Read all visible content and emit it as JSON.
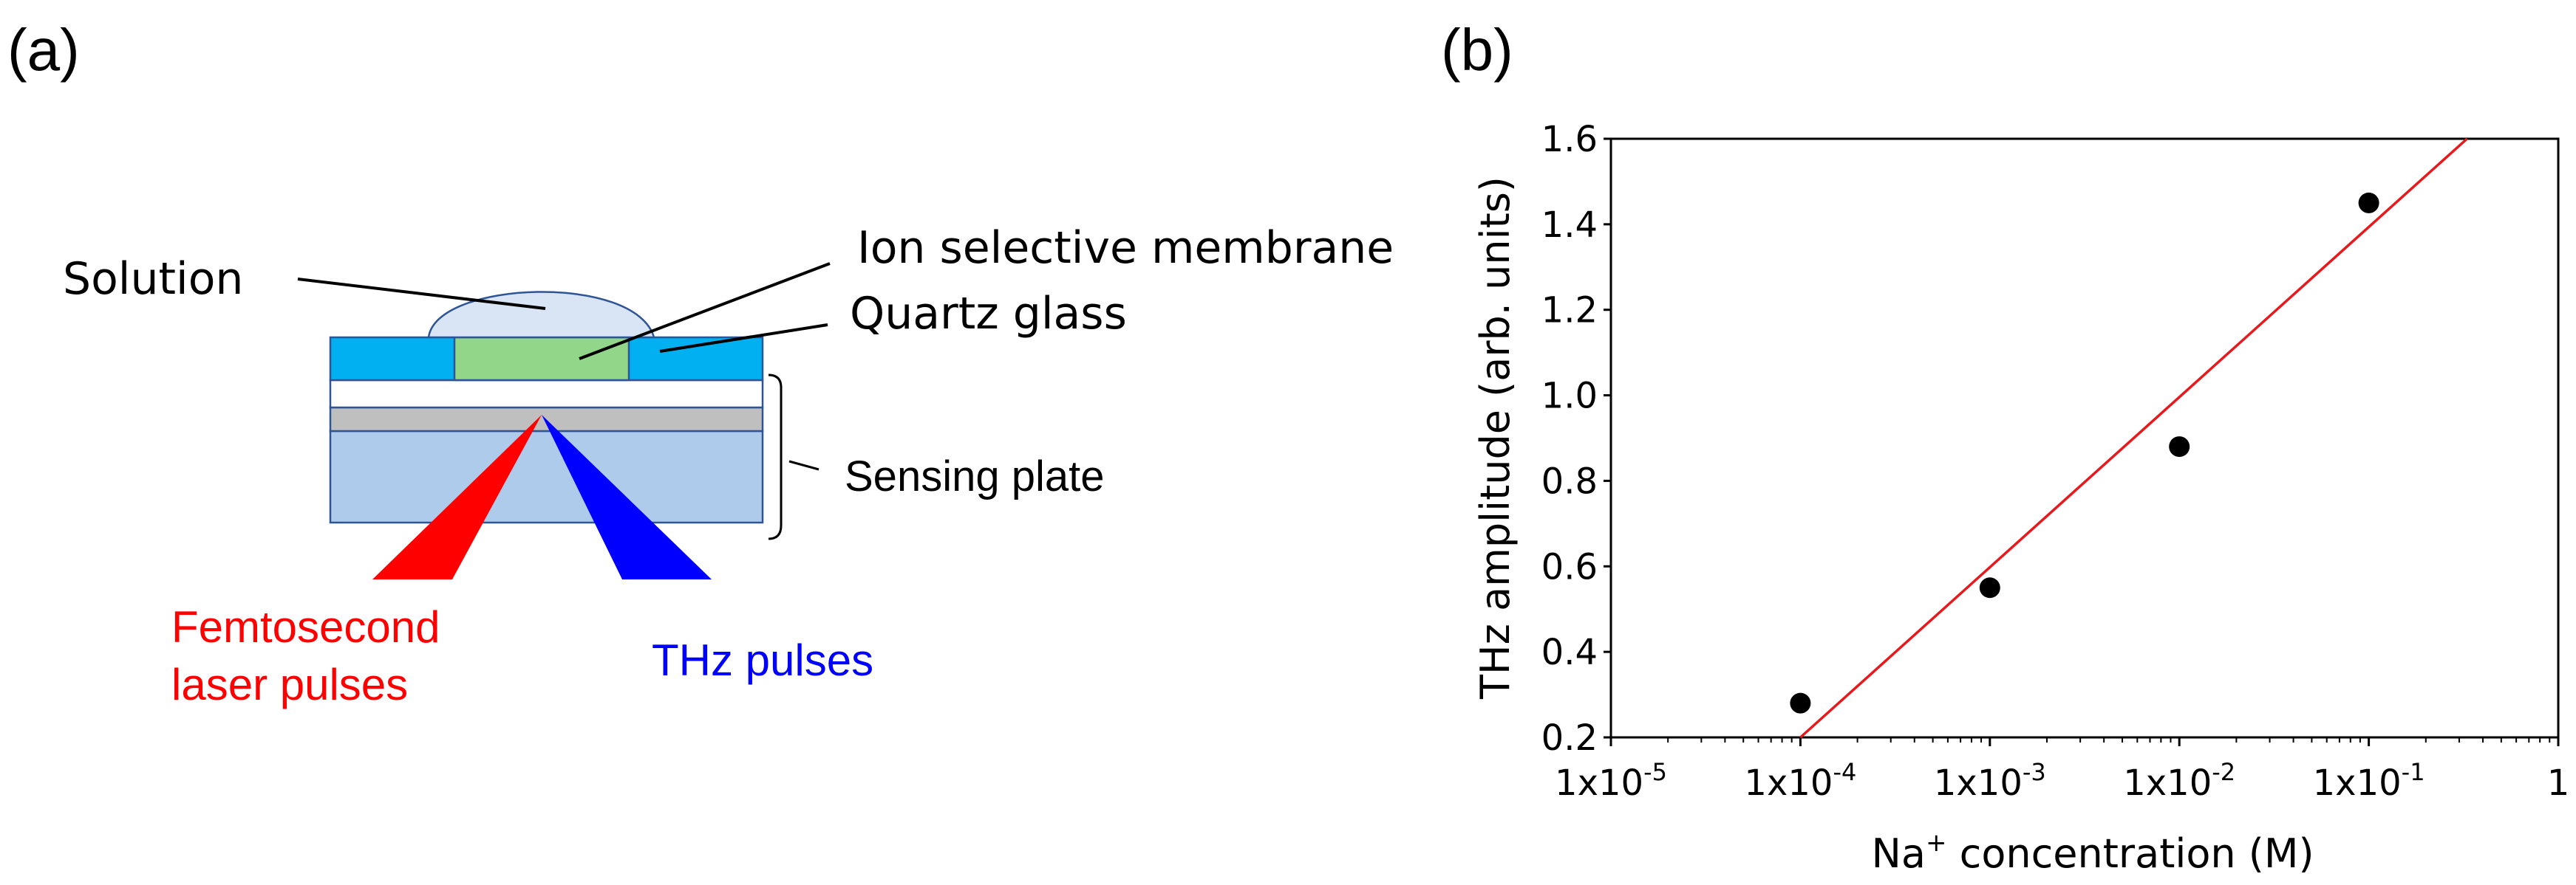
{
  "panel_a": {
    "label": "(a)",
    "labels": {
      "solution": "Solution",
      "membrane": "Ion selective membrane",
      "quartz": "Quartz glass",
      "sensing_plate": "Sensing plate",
      "femto_line1": "Femtosecond",
      "femto_line2": "laser pulses",
      "thz": "THz pulses"
    },
    "colors": {
      "quartz_glass": "#00b0f0",
      "membrane": "#92d68a",
      "solution": "#d9e5f5",
      "white_layer": "#ffffff",
      "gray_layer": "#bfbfbf",
      "substrate": "#aecbec",
      "outline": "#2f5597",
      "laser_beam": "#ff0000",
      "thz_beam": "#0000ff"
    }
  },
  "panel_b": {
    "label": "(b)",
    "chart_data": {
      "type": "scatter",
      "xscale": "log",
      "xlabel_main": "Na",
      "xlabel_sup": "+",
      "xlabel_rest": " concentration (M)",
      "ylabel": "THz amplitude (arb. units)",
      "xlim": [
        1e-05,
        1
      ],
      "ylim": [
        0.2,
        1.6
      ],
      "x_ticks": [
        {
          "value": 1e-05,
          "base": "1x10",
          "exp": "-5"
        },
        {
          "value": 0.0001,
          "base": "1x10",
          "exp": "-4"
        },
        {
          "value": 0.001,
          "base": "1x10",
          "exp": "-3"
        },
        {
          "value": 0.01,
          "base": "1x10",
          "exp": "-2"
        },
        {
          "value": 0.1,
          "base": "1x10",
          "exp": "-1"
        },
        {
          "value": 1,
          "base": "1",
          "exp": ""
        }
      ],
      "y_ticks": [
        "0.2",
        "0.4",
        "0.6",
        "0.8",
        "1.0",
        "1.2",
        "1.4",
        "1.6"
      ],
      "points": [
        {
          "x": 0.0001,
          "y": 0.28
        },
        {
          "x": 0.001,
          "y": 0.55
        },
        {
          "x": 0.01,
          "y": 0.88
        },
        {
          "x": 0.1,
          "y": 1.45
        }
      ],
      "fit_line": {
        "x": [
          0.0001,
          0.33
        ],
        "y": [
          0.2,
          1.6
        ]
      },
      "colors": {
        "points": "#000000",
        "fit": "#e8191c",
        "axes": "#000000"
      }
    }
  }
}
